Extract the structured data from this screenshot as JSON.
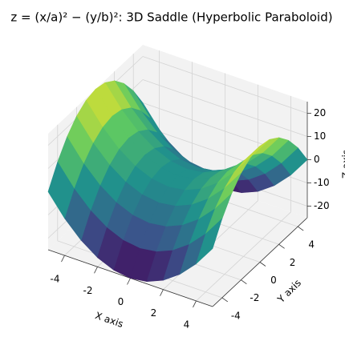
{
  "chart_data": {
    "type": "surface",
    "title": "z = (x/a)² − (y/b)²: 3D Saddle (Hyperbolic Paraboloid)",
    "x_label": "X axis",
    "y_label": "Y axis",
    "z_label": "Z axis",
    "colormap": "viridis",
    "x": [
      -5,
      -4,
      -3,
      -2,
      -1,
      0,
      1,
      2,
      3,
      4,
      5
    ],
    "y": [
      -5,
      -4,
      -3,
      -2,
      -1,
      0,
      1,
      2,
      3,
      4,
      5
    ],
    "z": [
      [
        0,
        -9,
        -16,
        -21,
        -24,
        -25,
        -24,
        -21,
        -16,
        -9,
        0
      ],
      [
        9,
        0,
        -7,
        -12,
        -15,
        -16,
        -15,
        -12,
        -7,
        0,
        9
      ],
      [
        16,
        7,
        0,
        -5,
        -8,
        -9,
        -8,
        -5,
        0,
        7,
        16
      ],
      [
        21,
        12,
        5,
        0,
        -3,
        -4,
        -3,
        0,
        5,
        12,
        21
      ],
      [
        24,
        15,
        8,
        3,
        0,
        -1,
        0,
        3,
        8,
        15,
        24
      ],
      [
        25,
        16,
        9,
        4,
        1,
        0,
        1,
        4,
        9,
        16,
        25
      ],
      [
        24,
        15,
        8,
        3,
        0,
        -1,
        0,
        3,
        8,
        15,
        24
      ],
      [
        21,
        12,
        5,
        0,
        -3,
        -4,
        -3,
        0,
        5,
        12,
        21
      ],
      [
        16,
        7,
        0,
        -5,
        -8,
        -9,
        -8,
        -5,
        0,
        7,
        16
      ],
      [
        9,
        0,
        -7,
        -12,
        -15,
        -16,
        -15,
        -12,
        -7,
        0,
        9
      ],
      [
        0,
        -9,
        -16,
        -21,
        -24,
        -25,
        -24,
        -21,
        -16,
        -9,
        0
      ]
    ],
    "xlim": [
      -5,
      5
    ],
    "ylim": [
      -5,
      5
    ],
    "zlim": [
      -25,
      25
    ],
    "xticks": [
      -4,
      -2,
      0,
      2,
      4
    ],
    "yticks": [
      -4,
      -2,
      0,
      2,
      4
    ],
    "zticks": [
      -20,
      -10,
      0,
      10,
      20
    ],
    "grid": true
  }
}
